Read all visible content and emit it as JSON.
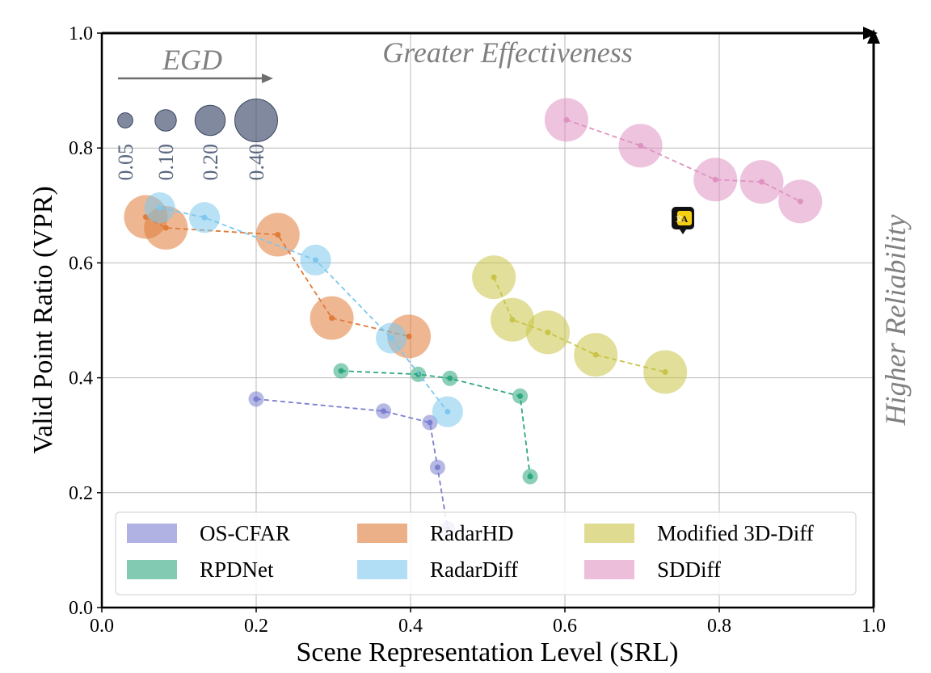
{
  "chart_data": {
    "type": "scatter",
    "xlabel": "Scene Representation Level (SRL)",
    "ylabel": "Valid Point Ratio (VPR)",
    "xlim": [
      0.0,
      1.0
    ],
    "ylim": [
      0.0,
      1.0
    ],
    "xticks": [
      "0.0",
      "0.2",
      "0.4",
      "0.6",
      "0.8",
      "1.0"
    ],
    "yticks": [
      "0.0",
      "0.2",
      "0.4",
      "0.6",
      "0.8",
      "1.0"
    ],
    "grid": true,
    "annotations": {
      "top": "Greater Effectiveness",
      "right": "Higher Reliability"
    },
    "size_legend": {
      "title": "EGD",
      "values": [
        0.05,
        0.1,
        0.2,
        0.4
      ],
      "labels": [
        "0.05",
        "0.10",
        "0.20",
        "0.40"
      ],
      "color": "#4a5775"
    },
    "legend_placement": "lower center",
    "series": [
      {
        "name": "OS-CFAR",
        "color": "#7b7fd0",
        "size": 0.05,
        "x": [
          0.2,
          0.365,
          0.425,
          0.435,
          0.448
        ],
        "y": [
          0.363,
          0.342,
          0.322,
          0.244,
          0.137
        ]
      },
      {
        "name": "RPDNet",
        "color": "#2ea77d",
        "size": 0.05,
        "x": [
          0.31,
          0.41,
          0.451,
          0.542,
          0.555
        ],
        "y": [
          0.412,
          0.406,
          0.399,
          0.368,
          0.228
        ]
      },
      {
        "name": "RadarHD",
        "color": "#e07b39",
        "size": 0.4,
        "x": [
          0.057,
          0.083,
          0.228,
          0.298,
          0.398
        ],
        "y": [
          0.68,
          0.661,
          0.649,
          0.504,
          0.472
        ]
      },
      {
        "name": "RadarDiff",
        "color": "#7ec8ee",
        "size": 0.2,
        "x": [
          0.075,
          0.133,
          0.277,
          0.375,
          0.448
        ],
        "y": [
          0.696,
          0.679,
          0.605,
          0.469,
          0.341
        ]
      },
      {
        "name": "Modified 3D-Diff",
        "color": "#c9c447",
        "size": 0.4,
        "x": [
          0.508,
          0.532,
          0.578,
          0.64,
          0.73
        ],
        "y": [
          0.575,
          0.501,
          0.479,
          0.44,
          0.41
        ]
      },
      {
        "name": "SDDiff",
        "color": "#df92c2",
        "size": 0.4,
        "x": [
          0.602,
          0.698,
          0.795,
          0.855,
          0.905
        ],
        "y": [
          0.849,
          0.804,
          0.745,
          0.741,
          0.707
        ]
      }
    ]
  },
  "icons": {
    "translate_badge": "translate-icon"
  }
}
